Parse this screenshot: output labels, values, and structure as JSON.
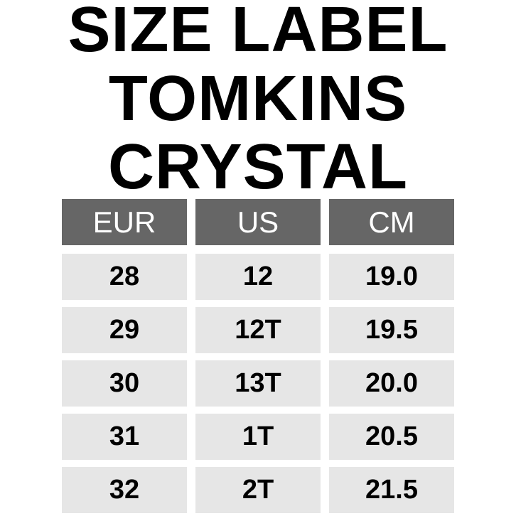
{
  "title_lines": [
    "SIZE LABEL",
    "TOMKINS",
    "CRYSTAL"
  ],
  "table": {
    "headers": [
      "EUR",
      "US",
      "CM"
    ],
    "rows": [
      [
        "28",
        "12",
        "19.0"
      ],
      [
        "29",
        "12T",
        "19.5"
      ],
      [
        "30",
        "13T",
        "20.0"
      ],
      [
        "31",
        "1T",
        "20.5"
      ],
      [
        "32",
        "2T",
        "21.5"
      ]
    ]
  },
  "colors": {
    "header_bg": "#666666",
    "cell_bg": "#e6e6e6",
    "text": "#000000"
  }
}
